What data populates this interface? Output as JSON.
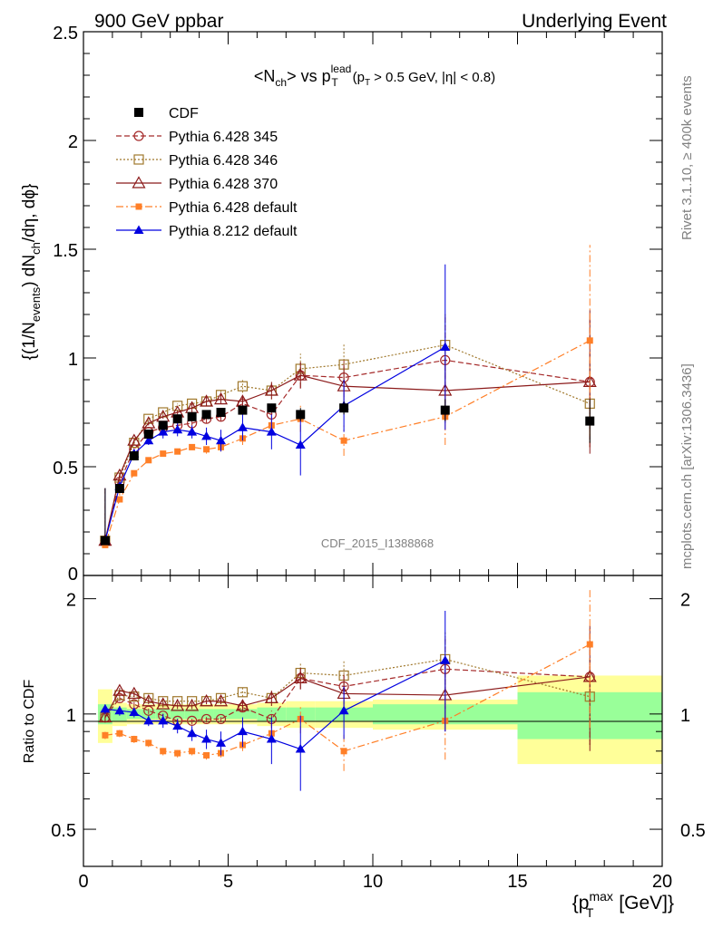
{
  "header": {
    "left": "900 GeV ppbar",
    "right": "Underlying Event"
  },
  "side_labels": {
    "rivet": "Rivet 3.1.10, ≥ 400k events",
    "mcplots": "mcplots.cern.ch [arXiv:1306.3436]"
  },
  "watermark": "CDF_2015_I1388868",
  "colors": {
    "cdf": "#000000",
    "p345": "#a52a2a",
    "p346": "#a0782c",
    "p370": "#8b1a1a",
    "p6def": "#ff7f27",
    "p8def": "#0000e0",
    "band_inner": "#99ff99",
    "band_outer": "#ffff99"
  },
  "chart_data": [
    {
      "type": "scatter",
      "panel": "main",
      "title_parts": {
        "n": "N",
        "n_sub": "ch",
        "vs": "vs",
        "p": "p",
        "p_sub": "T",
        "p_sup": "lead",
        "cut1_a": "(p",
        "cut1_sub": "T",
        "cut1_b": "> 0.5 GeV, |η| < 0.8)"
      },
      "ylabel_parts": {
        "a": "{(1/N",
        "a_sub": "events",
        "b": ") dN",
        "b_sub": "ch",
        "c": "/dη, dϕ}"
      },
      "ylim": [
        0,
        2.5
      ],
      "xlim": [
        0,
        20
      ],
      "yticks": [
        "0.5",
        "1",
        "1.5",
        "2",
        "2.5"
      ],
      "ytick_zero": "0",
      "legend": [
        {
          "key": "cdf",
          "label": "CDF"
        },
        {
          "key": "p345",
          "label": "Pythia 6.428 345"
        },
        {
          "key": "p346",
          "label": "Pythia 6.428 346"
        },
        {
          "key": "p370",
          "label": "Pythia 6.428 370"
        },
        {
          "key": "p6def",
          "label": "Pythia 6.428 default"
        },
        {
          "key": "p8def",
          "label": "Pythia 8.212 default"
        }
      ],
      "series": [
        {
          "key": "cdf",
          "name": "CDF",
          "marker": "square",
          "x": [
            0.75,
            1.25,
            1.75,
            2.25,
            2.75,
            3.25,
            3.75,
            4.25,
            4.75,
            5.5,
            6.5,
            7.5,
            9.0,
            12.5,
            17.5
          ],
          "y": [
            0.16,
            0.4,
            0.55,
            0.65,
            0.69,
            0.72,
            0.73,
            0.74,
            0.75,
            0.76,
            0.77,
            0.74,
            0.77,
            0.76,
            0.71
          ],
          "err": [
            0.01,
            0.01,
            0.01,
            0.01,
            0.01,
            0.01,
            0.01,
            0.01,
            0.01,
            0.02,
            0.02,
            0.03,
            0.03,
            0.05,
            0.1
          ]
        },
        {
          "key": "p345",
          "name": "Pythia 6.428 345",
          "marker": "circle-open",
          "dash": "6,3",
          "x": [
            0.75,
            1.25,
            1.75,
            2.25,
            2.75,
            3.25,
            3.75,
            4.25,
            4.75,
            5.5,
            6.5,
            7.5,
            9.0,
            12.5,
            17.5
          ],
          "y": [
            0.16,
            0.43,
            0.58,
            0.66,
            0.68,
            0.69,
            0.7,
            0.72,
            0.73,
            0.79,
            0.74,
            0.92,
            0.91,
            0.99,
            0.89
          ],
          "err": [
            0.005,
            0.01,
            0.01,
            0.01,
            0.01,
            0.01,
            0.01,
            0.02,
            0.02,
            0.03,
            0.04,
            0.06,
            0.09,
            0.2,
            0.3
          ]
        },
        {
          "key": "p346",
          "name": "Pythia 6.428 346",
          "marker": "square-open",
          "dash": "2,2",
          "x": [
            0.75,
            1.25,
            1.75,
            2.25,
            2.75,
            3.25,
            3.75,
            4.25,
            4.75,
            5.5,
            6.5,
            7.5,
            9.0,
            12.5,
            17.5
          ],
          "y": [
            0.16,
            0.45,
            0.61,
            0.72,
            0.75,
            0.78,
            0.79,
            0.8,
            0.83,
            0.87,
            0.85,
            0.95,
            0.97,
            1.06,
            0.79
          ],
          "err": [
            0.005,
            0.01,
            0.01,
            0.01,
            0.01,
            0.01,
            0.01,
            0.02,
            0.02,
            0.03,
            0.04,
            0.07,
            0.1,
            0.15,
            0.2
          ]
        },
        {
          "key": "p370",
          "name": "Pythia 6.428 370",
          "marker": "triangle-open",
          "x": [
            0.75,
            1.25,
            1.75,
            2.25,
            2.75,
            3.25,
            3.75,
            4.25,
            4.75,
            5.5,
            6.5,
            7.5,
            9.0,
            12.5,
            17.5
          ],
          "y": [
            0.16,
            0.46,
            0.62,
            0.7,
            0.73,
            0.75,
            0.77,
            0.8,
            0.81,
            0.8,
            0.85,
            0.92,
            0.87,
            0.85,
            0.89
          ],
          "err": [
            0.005,
            0.01,
            0.01,
            0.01,
            0.01,
            0.01,
            0.02,
            0.02,
            0.02,
            0.03,
            0.04,
            0.06,
            0.1,
            0.15,
            0.33
          ]
        },
        {
          "key": "p6def",
          "name": "Pythia 6.428 default",
          "marker": "square-small",
          "dash": "8,3,2,3",
          "x": [
            0.75,
            1.25,
            1.75,
            2.25,
            2.75,
            3.25,
            3.75,
            4.25,
            4.75,
            5.5,
            6.5,
            7.5,
            9.0,
            12.5,
            17.5
          ],
          "y": [
            0.14,
            0.35,
            0.47,
            0.53,
            0.56,
            0.57,
            0.59,
            0.58,
            0.59,
            0.63,
            0.69,
            0.72,
            0.62,
            0.73,
            1.08
          ],
          "err": [
            0.005,
            0.01,
            0.01,
            0.01,
            0.01,
            0.01,
            0.01,
            0.02,
            0.02,
            0.03,
            0.04,
            0.06,
            0.07,
            0.13,
            0.44
          ]
        },
        {
          "key": "p8def",
          "name": "Pythia 8.212 default",
          "marker": "triangle",
          "x": [
            0.75,
            1.25,
            1.75,
            2.25,
            2.75,
            3.25,
            3.75,
            4.25,
            4.75,
            5.5,
            6.5,
            7.5,
            9.0,
            12.5,
            17.5
          ],
          "y": [
            0.16,
            0.41,
            0.56,
            0.62,
            0.66,
            0.67,
            0.66,
            0.64,
            0.62,
            0.68,
            0.66,
            0.6,
            0.78,
            1.05,
            null
          ],
          "err": [
            0.01,
            0.01,
            0.02,
            0.02,
            0.03,
            0.03,
            0.03,
            0.04,
            0.05,
            0.06,
            0.08,
            0.14,
            0.12,
            0.38,
            0
          ]
        }
      ]
    },
    {
      "type": "scatter",
      "panel": "ratio",
      "ylabel": "Ratio to CDF",
      "xlabel_parts": {
        "a": "{p",
        "sub": "T",
        "sup": "max",
        "b": " [GeV]}"
      },
      "ylim": [
        0.4,
        2.3
      ],
      "log_y": true,
      "xlim": [
        0,
        20
      ],
      "yticks": [
        "0.5",
        "1",
        "2"
      ],
      "xticks": [
        "0",
        "5",
        "10",
        "15",
        "20"
      ],
      "band_bins": [
        [
          0.5,
          1.0
        ],
        [
          1.0,
          1.5
        ],
        [
          1.5,
          2.0
        ],
        [
          2.0,
          2.5
        ],
        [
          2.5,
          3.0
        ],
        [
          3.0,
          3.5
        ],
        [
          3.5,
          4.0
        ],
        [
          4.0,
          4.5
        ],
        [
          4.5,
          5.0
        ],
        [
          5.0,
          6.0
        ],
        [
          6.0,
          7.0
        ],
        [
          7.0,
          8.0
        ],
        [
          8.0,
          10.0
        ],
        [
          10.0,
          15.0
        ],
        [
          15.0,
          20.0
        ]
      ],
      "band_inner": [
        0.06,
        0.04,
        0.03,
        0.03,
        0.03,
        0.03,
        0.03,
        0.03,
        0.03,
        0.03,
        0.04,
        0.04,
        0.04,
        0.06,
        0.14
      ],
      "band_outer": [
        0.16,
        0.07,
        0.06,
        0.06,
        0.06,
        0.06,
        0.06,
        0.06,
        0.06,
        0.06,
        0.07,
        0.08,
        0.08,
        0.09,
        0.26
      ],
      "series": [
        {
          "key": "p345",
          "y": [
            0.98,
            1.1,
            1.06,
            1.02,
            0.99,
            0.96,
            0.96,
            0.97,
            0.97,
            1.04,
            0.97,
            1.24,
            1.18,
            1.31,
            1.25
          ],
          "err": [
            0.03,
            0.02,
            0.02,
            0.02,
            0.02,
            0.02,
            0.02,
            0.02,
            0.02,
            0.03,
            0.05,
            0.08,
            0.12,
            0.28,
            0.42
          ]
        },
        {
          "key": "p346",
          "y": [
            0.98,
            1.12,
            1.11,
            1.1,
            1.08,
            1.08,
            1.08,
            1.08,
            1.1,
            1.14,
            1.1,
            1.28,
            1.26,
            1.39,
            1.11
          ],
          "err": [
            0.03,
            0.02,
            0.02,
            0.02,
            0.02,
            0.02,
            0.02,
            0.02,
            0.02,
            0.03,
            0.05,
            0.08,
            0.12,
            0.25,
            0.28
          ]
        },
        {
          "key": "p370",
          "y": [
            0.98,
            1.15,
            1.13,
            1.08,
            1.06,
            1.05,
            1.05,
            1.08,
            1.08,
            1.05,
            1.1,
            1.24,
            1.13,
            1.12,
            1.25
          ],
          "err": [
            0.03,
            0.02,
            0.02,
            0.02,
            0.02,
            0.02,
            0.02,
            0.02,
            0.02,
            0.03,
            0.05,
            0.08,
            0.13,
            0.22,
            0.45
          ]
        },
        {
          "key": "p6def",
          "y": [
            0.88,
            0.89,
            0.86,
            0.84,
            0.8,
            0.79,
            0.8,
            0.78,
            0.79,
            0.83,
            0.89,
            0.97,
            0.8,
            0.96,
            1.52
          ],
          "err": [
            0.02,
            0.02,
            0.02,
            0.02,
            0.02,
            0.02,
            0.02,
            0.02,
            0.02,
            0.03,
            0.05,
            0.08,
            0.09,
            0.2,
            0.6
          ]
        },
        {
          "key": "p8def",
          "y": [
            1.03,
            1.02,
            1.01,
            0.96,
            0.96,
            0.93,
            0.89,
            0.86,
            0.84,
            0.9,
            0.86,
            0.81,
            1.02,
            1.38,
            null
          ],
          "err": [
            0.03,
            0.03,
            0.03,
            0.03,
            0.04,
            0.04,
            0.04,
            0.05,
            0.06,
            0.08,
            0.12,
            0.18,
            0.16,
            0.48,
            0
          ]
        }
      ]
    }
  ]
}
